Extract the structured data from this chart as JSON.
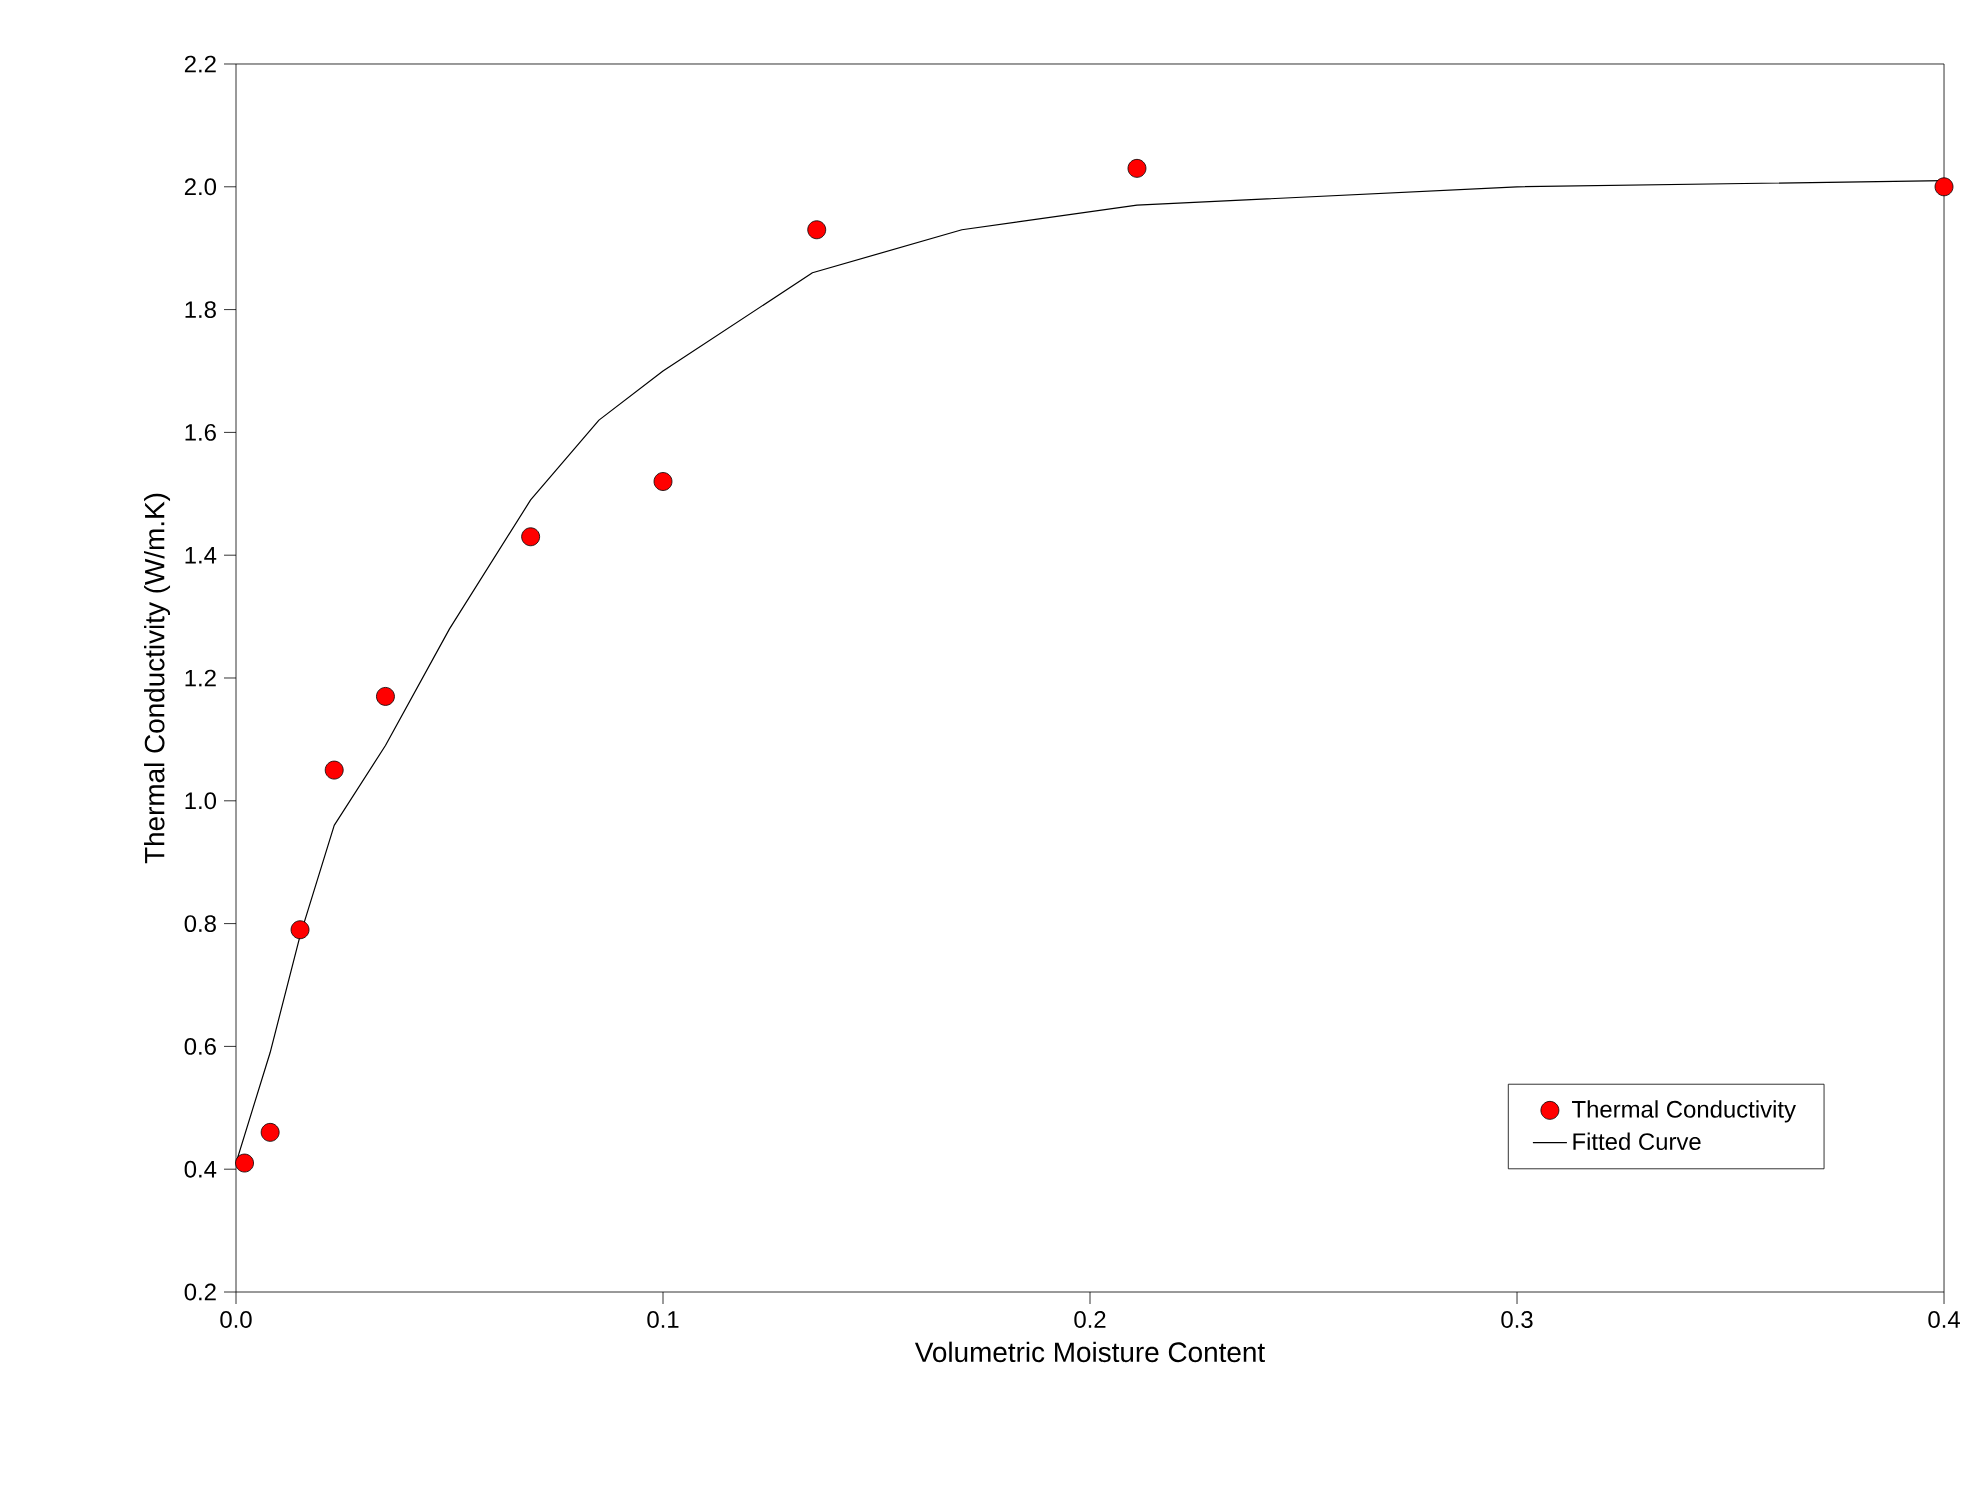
{
  "chart_data": {
    "type": "scatter",
    "xlabel": "Volumetric Moisture Content",
    "ylabel": "Thermal Conductivity (W/m.K)",
    "xlim": [
      0,
      0.4
    ],
    "ylim": [
      0.2,
      2.2
    ],
    "xticks": [
      {
        "value": 0,
        "label": "0.0"
      },
      0.1,
      0.2,
      0.3,
      0.4
    ],
    "yticks": [
      0.2,
      0.4,
      0.6,
      0.8,
      {
        "value": 1,
        "label": "1.0"
      },
      1.2,
      1.4,
      1.6,
      1.8,
      {
        "value": 2,
        "label": "2.0"
      },
      2.2
    ],
    "legend": "bottom right",
    "grid": false,
    "series": [
      {
        "name": "Thermal Conductivity",
        "marker": "circle",
        "color": "#ff0000",
        "x": [
          0.002,
          0.008,
          0.015,
          0.023,
          0.035,
          0.069,
          0.1,
          0.136,
          0.211,
          0.4
        ],
        "values": [
          0.41,
          0.46,
          0.79,
          1.05,
          1.17,
          1.43,
          1.52,
          1.93,
          2.03,
          2.0
        ]
      },
      {
        "name": "Fitted Curve",
        "type": "line",
        "marker": "none",
        "line_style": "solid",
        "color": "#000000",
        "x": [
          0,
          0.008,
          0.015,
          0.023,
          0.035,
          0.05,
          0.069,
          0.085,
          0.1,
          0.135,
          0.17,
          0.211,
          0.3,
          0.4
        ],
        "values": [
          0.41,
          0.59,
          0.78,
          0.96,
          1.09,
          1.28,
          1.49,
          1.62,
          1.7,
          1.86,
          1.93,
          1.97,
          2.0,
          2.01
        ]
      }
    ]
  }
}
